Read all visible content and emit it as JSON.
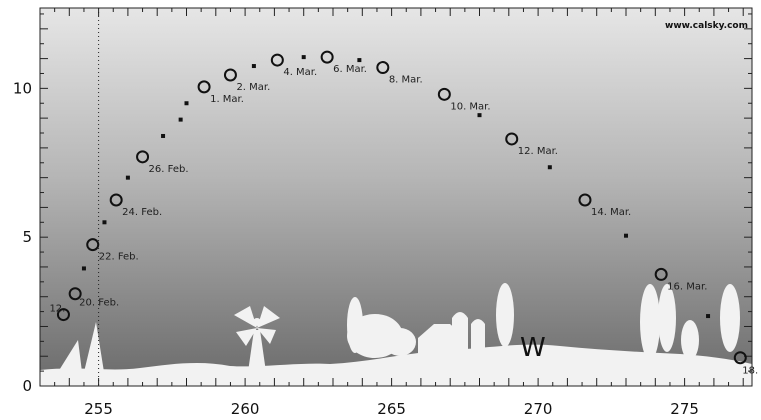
{
  "chart_data": {
    "type": "scatter",
    "title": "",
    "xlabel": "",
    "ylabel": "",
    "xlim": [
      253,
      277.3
    ],
    "ylim": [
      0,
      12.7
    ],
    "x_ticks": [
      255,
      260,
      265,
      270,
      275
    ],
    "y_ticks": [
      0,
      5,
      10
    ],
    "grid": false,
    "credit": "www.calsky.com",
    "direction_label": "W",
    "reference_line_x": 255,
    "series": [
      {
        "marker": "open-circle",
        "points": [
          {
            "x": 253.8,
            "y": 2.4,
            "label": "12."
          },
          {
            "x": 254.2,
            "y": 3.1,
            "label": "20. Feb."
          },
          {
            "x": 254.8,
            "y": 4.75,
            "label": "22. Feb."
          },
          {
            "x": 255.6,
            "y": 6.25,
            "label": "24. Feb."
          },
          {
            "x": 256.5,
            "y": 7.7,
            "label": "26. Feb."
          },
          {
            "x": 258.6,
            "y": 10.05,
            "label": "1. Mar."
          },
          {
            "x": 259.5,
            "y": 10.45,
            "label": "2. Mar."
          },
          {
            "x": 261.1,
            "y": 10.95,
            "label": "4. Mar."
          },
          {
            "x": 262.8,
            "y": 11.05,
            "label": "6. Mar."
          },
          {
            "x": 264.7,
            "y": 10.7,
            "label": "8. Mar."
          },
          {
            "x": 266.8,
            "y": 9.8,
            "label": "10. Mar."
          },
          {
            "x": 269.1,
            "y": 8.3,
            "label": "12. Mar."
          },
          {
            "x": 271.6,
            "y": 6.25,
            "label": "14. Mar."
          },
          {
            "x": 274.2,
            "y": 3.75,
            "label": "16. Mar."
          },
          {
            "x": 276.9,
            "y": 0.95,
            "label": "18."
          }
        ]
      },
      {
        "marker": "dot",
        "points": [
          {
            "x": 254.5,
            "y": 3.95
          },
          {
            "x": 255.2,
            "y": 5.5
          },
          {
            "x": 256.0,
            "y": 7.0
          },
          {
            "x": 257.2,
            "y": 8.4
          },
          {
            "x": 257.8,
            "y": 8.95
          },
          {
            "x": 258.0,
            "y": 9.5
          },
          {
            "x": 260.3,
            "y": 10.75
          },
          {
            "x": 262.0,
            "y": 11.05
          },
          {
            "x": 263.9,
            "y": 10.95
          },
          {
            "x": 268.0,
            "y": 9.1
          },
          {
            "x": 270.4,
            "y": 7.35
          },
          {
            "x": 273.0,
            "y": 5.05
          },
          {
            "x": 275.8,
            "y": 2.35
          }
        ]
      }
    ]
  }
}
